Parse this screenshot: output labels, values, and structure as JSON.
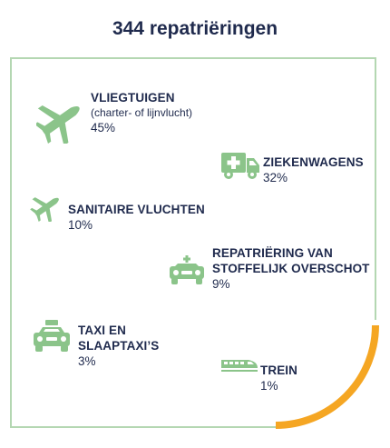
{
  "title": "344 repatriëringen",
  "colors": {
    "green": "#8bc48a",
    "border": "#b4d7b2",
    "accent": "#f5a623",
    "text": "#1f2a4d"
  },
  "items": [
    {
      "icon": "airplane-icon",
      "label": "VLIEGTUIGEN",
      "sub": "(charter- of lijnvlucht)",
      "percent": "45%"
    },
    {
      "icon": "ambulance-icon",
      "label": "ZIEKENWAGENS",
      "percent": "32%"
    },
    {
      "icon": "small-airplane-icon",
      "label": "SANITAIRE VLUCHTEN",
      "percent": "10%"
    },
    {
      "icon": "hearse-icon",
      "label_line1": "REPATRIËRING VAN",
      "label_line2": "STOFFELIJK OVERSCHOT",
      "percent": "9%"
    },
    {
      "icon": "taxi-icon",
      "label_line1": "TAXI EN",
      "label_line2": "SLAAPTAXI’S",
      "percent": "3%"
    },
    {
      "icon": "train-icon",
      "label": "TREIN",
      "percent": "1%"
    }
  ]
}
